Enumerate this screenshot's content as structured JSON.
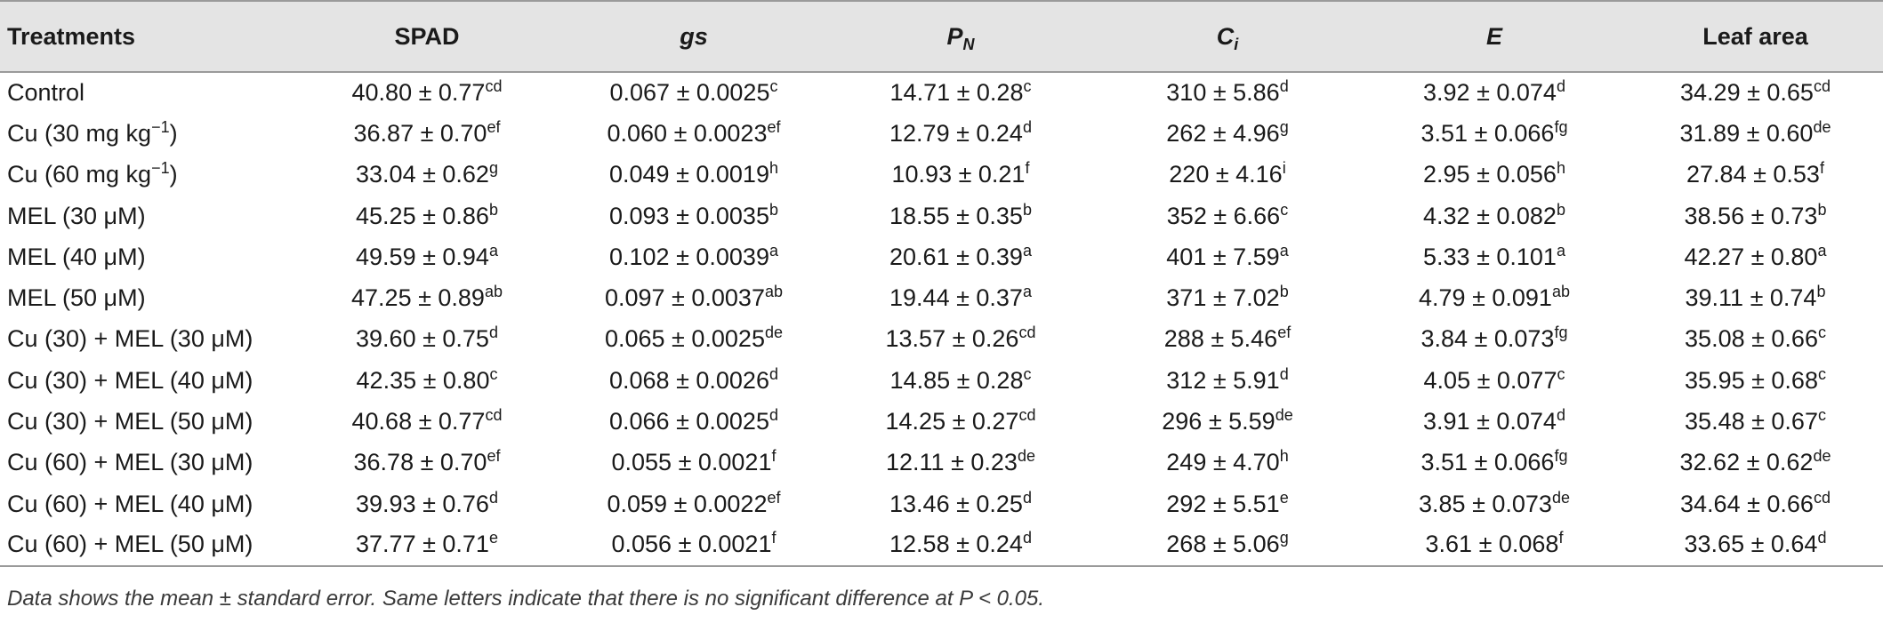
{
  "table": {
    "headers": {
      "treatments": "Treatments",
      "spad": "SPAD",
      "gs": "gs",
      "pn_main": "P",
      "pn_sub": "N",
      "ci_main": "C",
      "ci_sub": "i",
      "e": "E",
      "leaf_area": "Leaf area"
    },
    "rows": [
      {
        "treatment": "Control",
        "treatment_sup": "",
        "spad": "40.80 ± 0.77",
        "spad_sup": "cd",
        "gs": "0.067 ± 0.0025",
        "gs_sup": "c",
        "pn": "14.71 ± 0.28",
        "pn_sup": "c",
        "ci": "310 ± 5.86",
        "ci_sup": "d",
        "e": "3.92 ± 0.074",
        "e_sup": "d",
        "leaf": "34.29 ± 0.65",
        "leaf_sup": "cd"
      },
      {
        "treatment": "Cu (30 mg kg",
        "treatment_sup": "−1",
        "treatment_end": ")",
        "spad": "36.87 ± 0.70",
        "spad_sup": "ef",
        "gs": "0.060 ± 0.0023",
        "gs_sup": "ef",
        "pn": "12.79 ± 0.24",
        "pn_sup": "d",
        "ci": "262 ± 4.96",
        "ci_sup": "g",
        "e": "3.51 ± 0.066",
        "e_sup": "fg",
        "leaf": "31.89 ± 0.60",
        "leaf_sup": "de"
      },
      {
        "treatment": "Cu (60 mg kg",
        "treatment_sup": "−1",
        "treatment_end": ")",
        "spad": "33.04 ± 0.62",
        "spad_sup": "g",
        "gs": "0.049 ± 0.0019",
        "gs_sup": "h",
        "pn": "10.93 ± 0.21",
        "pn_sup": "f",
        "ci": "220 ± 4.16",
        "ci_sup": "i",
        "e": "2.95 ± 0.056",
        "e_sup": "h",
        "leaf": "27.84 ± 0.53",
        "leaf_sup": "f"
      },
      {
        "treatment": "MEL (30 μM)",
        "treatment_sup": "",
        "spad": "45.25 ± 0.86",
        "spad_sup": "b",
        "gs": "0.093 ± 0.0035",
        "gs_sup": "b",
        "pn": "18.55 ± 0.35",
        "pn_sup": "b",
        "ci": "352 ± 6.66",
        "ci_sup": "c",
        "e": "4.32 ± 0.082",
        "e_sup": "b",
        "leaf": "38.56 ± 0.73",
        "leaf_sup": "b"
      },
      {
        "treatment": "MEL (40 μM)",
        "treatment_sup": "",
        "spad": "49.59 ± 0.94",
        "spad_sup": "a",
        "gs": "0.102 ± 0.0039",
        "gs_sup": "a",
        "pn": "20.61 ± 0.39",
        "pn_sup": "a",
        "ci": "401 ± 7.59",
        "ci_sup": "a",
        "e": "5.33 ± 0.101",
        "e_sup": "a",
        "leaf": "42.27 ± 0.80",
        "leaf_sup": "a"
      },
      {
        "treatment": "MEL (50 μM)",
        "treatment_sup": "",
        "spad": "47.25 ± 0.89",
        "spad_sup": "ab",
        "gs": "0.097 ± 0.0037",
        "gs_sup": "ab",
        "pn": "19.44 ± 0.37",
        "pn_sup": "a",
        "ci": "371 ± 7.02",
        "ci_sup": "b",
        "e": "4.79 ± 0.091",
        "e_sup": "ab",
        "leaf": "39.11 ± 0.74",
        "leaf_sup": "b"
      },
      {
        "treatment": "Cu (30)  + MEL (30 μM)",
        "treatment_sup": "",
        "spad": "39.60 ± 0.75",
        "spad_sup": "d",
        "gs": "0.065 ± 0.0025",
        "gs_sup": "de",
        "pn": "13.57 ± 0.26",
        "pn_sup": "cd",
        "ci": "288 ± 5.46",
        "ci_sup": "ef",
        "e": "3.84 ± 0.073",
        "e_sup": "fg",
        "leaf": "35.08 ± 0.66",
        "leaf_sup": "c"
      },
      {
        "treatment": "Cu (30)  + MEL (40 μM)",
        "treatment_sup": "",
        "spad": "42.35 ± 0.80",
        "spad_sup": "c",
        "gs": "0.068 ± 0.0026",
        "gs_sup": "d",
        "pn": "14.85 ± 0.28",
        "pn_sup": "c",
        "ci": "312 ± 5.91",
        "ci_sup": "d",
        "e": "4.05 ± 0.077",
        "e_sup": "c",
        "leaf": "35.95 ± 0.68",
        "leaf_sup": "c"
      },
      {
        "treatment": "Cu (30)  + MEL (50 μM)",
        "treatment_sup": "",
        "spad": "40.68 ± 0.77",
        "spad_sup": "cd",
        "gs": "0.066 ± 0.0025",
        "gs_sup": "d",
        "pn": "14.25 ± 0.27",
        "pn_sup": "cd",
        "ci": "296 ± 5.59",
        "ci_sup": "de",
        "e": "3.91 ± 0.074",
        "e_sup": "d",
        "leaf": "35.48 ± 0.67",
        "leaf_sup": "c"
      },
      {
        "treatment": "Cu (60)  + MEL (30 μM)",
        "treatment_sup": "",
        "spad": "36.78 ± 0.70",
        "spad_sup": "ef",
        "gs": "0.055 ± 0.0021",
        "gs_sup": "f",
        "pn": "12.11 ± 0.23",
        "pn_sup": "de",
        "ci": "249 ± 4.70",
        "ci_sup": "h",
        "e": "3.51 ± 0.066",
        "e_sup": "fg",
        "leaf": "32.62 ± 0.62",
        "leaf_sup": "de"
      },
      {
        "treatment": "Cu (60)  + MEL (40 μM)",
        "treatment_sup": "",
        "spad": "39.93 ± 0.76",
        "spad_sup": "d",
        "gs": "0.059 ± 0.0022",
        "gs_sup": "ef",
        "pn": "13.46 ± 0.25",
        "pn_sup": "d",
        "ci": "292 ± 5.51",
        "ci_sup": "e",
        "e": "3.85 ± 0.073",
        "e_sup": "de",
        "leaf": "34.64 ± 0.66",
        "leaf_sup": "cd"
      },
      {
        "treatment": "Cu (60)  + MEL (50 μM)",
        "treatment_sup": "",
        "spad": "37.77 ± 0.71",
        "spad_sup": "e",
        "gs": "0.056 ± 0.0021",
        "gs_sup": "f",
        "pn": "12.58 ± 0.24",
        "pn_sup": "d",
        "ci": "268 ± 5.06",
        "ci_sup": "g",
        "e": "3.61 ± 0.068",
        "e_sup": "f",
        "leaf": "33.65 ± 0.64",
        "leaf_sup": "d"
      }
    ]
  },
  "footnote": "Data shows the mean ± standard error. Same letters indicate that there is no significant difference at P < 0.05."
}
